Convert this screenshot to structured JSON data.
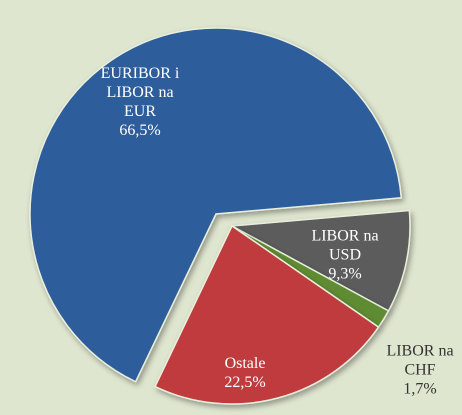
{
  "chart_data": {
    "type": "pie",
    "categories": [
      "EURIBOR i LIBOR na EUR",
      "LIBOR na USD",
      "LIBOR na CHF",
      "Ostale"
    ],
    "values": [
      66.5,
      9.3,
      1.7,
      22.5
    ],
    "value_labels": [
      "66,5%",
      "9,3%",
      "1,7%",
      "22,5%"
    ],
    "colors": [
      "#2d5d9c",
      "#5b5b5b",
      "#5e8c30",
      "#bf3a3c"
    ]
  }
}
